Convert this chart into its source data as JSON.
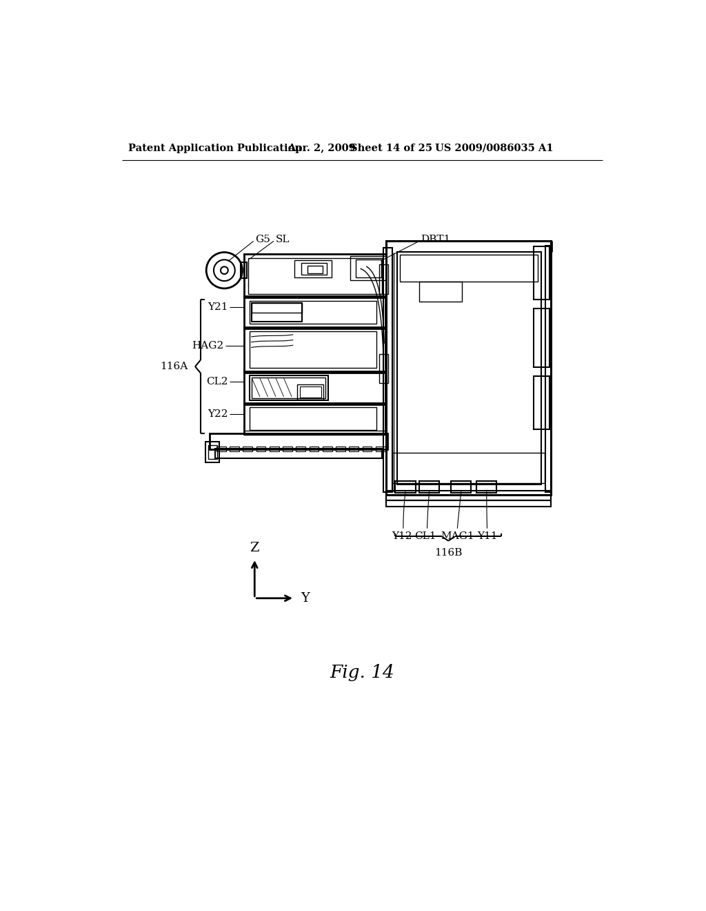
{
  "bg_color": "#ffffff",
  "header_text": "Patent Application Publication",
  "header_date": "Apr. 2, 2009",
  "header_sheet": "Sheet 14 of 25",
  "header_patent": "US 2009/0086035 A1",
  "fig_label": "Fig. 14",
  "line_color": "#000000"
}
